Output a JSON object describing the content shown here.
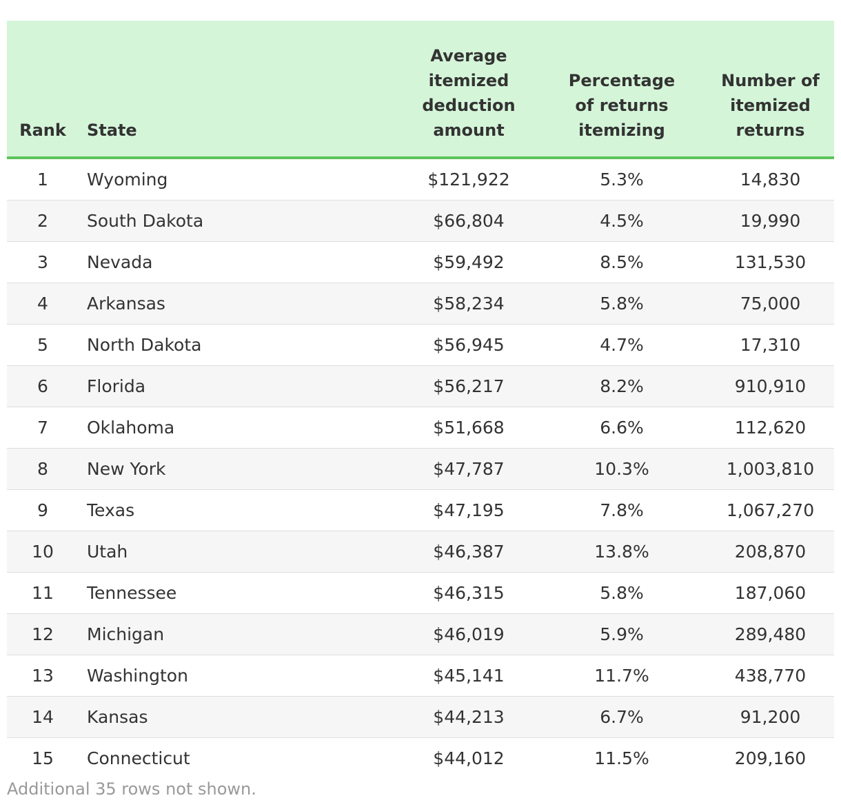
{
  "table": {
    "headers": {
      "rank": "Rank",
      "state": "State",
      "avg": [
        "Average",
        "itemized",
        "deduction",
        "amount"
      ],
      "pct": [
        "Percentage",
        "of returns",
        "itemizing"
      ],
      "num": [
        "Number of",
        "itemized",
        "returns"
      ]
    },
    "rows": [
      {
        "rank": "1",
        "state": "Wyoming",
        "avg": "$121,922",
        "pct": "5.3%",
        "num": "14,830"
      },
      {
        "rank": "2",
        "state": "South Dakota",
        "avg": "$66,804",
        "pct": "4.5%",
        "num": "19,990"
      },
      {
        "rank": "3",
        "state": "Nevada",
        "avg": "$59,492",
        "pct": "8.5%",
        "num": "131,530"
      },
      {
        "rank": "4",
        "state": "Arkansas",
        "avg": "$58,234",
        "pct": "5.8%",
        "num": "75,000"
      },
      {
        "rank": "5",
        "state": "North Dakota",
        "avg": "$56,945",
        "pct": "4.7%",
        "num": "17,310"
      },
      {
        "rank": "6",
        "state": "Florida",
        "avg": "$56,217",
        "pct": "8.2%",
        "num": "910,910"
      },
      {
        "rank": "7",
        "state": "Oklahoma",
        "avg": "$51,668",
        "pct": "6.6%",
        "num": "112,620"
      },
      {
        "rank": "8",
        "state": "New York",
        "avg": "$47,787",
        "pct": "10.3%",
        "num": "1,003,810"
      },
      {
        "rank": "9",
        "state": "Texas",
        "avg": "$47,195",
        "pct": "7.8%",
        "num": "1,067,270"
      },
      {
        "rank": "10",
        "state": "Utah",
        "avg": "$46,387",
        "pct": "13.8%",
        "num": "208,870"
      },
      {
        "rank": "11",
        "state": "Tennessee",
        "avg": "$46,315",
        "pct": "5.8%",
        "num": "187,060"
      },
      {
        "rank": "12",
        "state": "Michigan",
        "avg": "$46,019",
        "pct": "5.9%",
        "num": "289,480"
      },
      {
        "rank": "13",
        "state": "Washington",
        "avg": "$45,141",
        "pct": "11.7%",
        "num": "438,770"
      },
      {
        "rank": "14",
        "state": "Kansas",
        "avg": "$44,213",
        "pct": "6.7%",
        "num": "91,200"
      },
      {
        "rank": "15",
        "state": "Connecticut",
        "avg": "$44,012",
        "pct": "11.5%",
        "num": "209,160"
      }
    ]
  },
  "footer_note": "Additional 35 rows not shown.",
  "colors": {
    "header_background": "#d5f5d9",
    "header_rule": "#5cc35a",
    "stripe": "#f6f6f6",
    "note_text": "#999999"
  }
}
